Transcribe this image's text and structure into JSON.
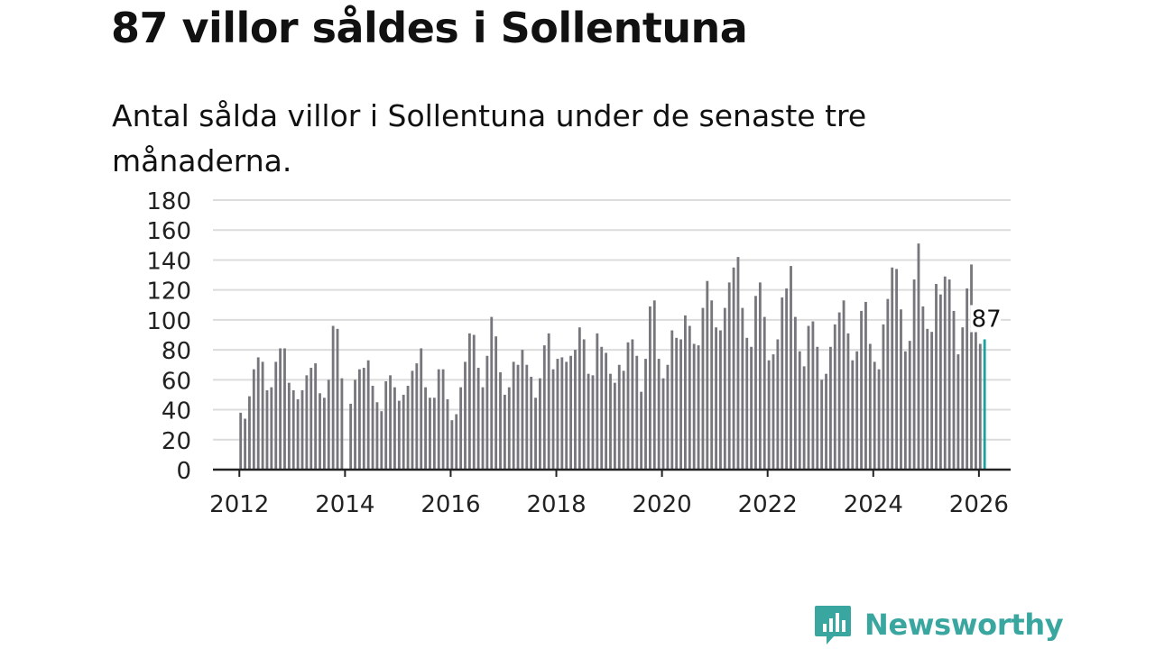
{
  "title": "87 villor såldes i Sollentuna",
  "subtitle": "Antal sålda villor i Sollentuna under de senaste tre månaderna.",
  "brand": {
    "name": "Newsworthy",
    "logo_icon": "bar-chart-speech-bubble-icon",
    "color": "#3aa6a0"
  },
  "chart_data": {
    "type": "bar",
    "title": "Antal sålda villor i Sollentuna under de senaste tre månaderna.",
    "xlabel": "",
    "ylabel": "",
    "ylim": [
      0,
      180
    ],
    "yticks": [
      "0",
      "20",
      "40",
      "60",
      "80",
      "100",
      "120",
      "140",
      "160",
      "180"
    ],
    "xlim": [
      2011.5,
      2026.6
    ],
    "xticks": [
      "2012",
      "2014",
      "2016",
      "2018",
      "2020",
      "2022",
      "2024",
      "2026"
    ],
    "grid": true,
    "bar_color": "#77767c",
    "highlight_color": "#1aa39c",
    "start": {
      "year": 2012,
      "month": 1
    },
    "values": [
      38,
      34,
      49,
      67,
      75,
      72,
      53,
      55,
      72,
      81,
      81,
      58,
      53,
      47,
      53,
      63,
      68,
      71,
      51,
      48,
      60,
      96,
      94,
      61,
      0,
      44,
      60,
      67,
      68,
      73,
      56,
      45,
      39,
      59,
      63,
      55,
      46,
      50,
      56,
      66,
      71,
      81,
      55,
      48,
      48,
      67,
      67,
      47,
      33,
      37,
      55,
      72,
      91,
      90,
      68,
      55,
      76,
      102,
      89,
      65,
      50,
      55,
      72,
      70,
      80,
      70,
      62,
      48,
      61,
      83,
      91,
      67,
      74,
      75,
      72,
      76,
      80,
      95,
      87,
      64,
      63,
      91,
      82,
      78,
      64,
      58,
      70,
      66,
      85,
      87,
      76,
      52,
      74,
      109,
      113,
      74,
      61,
      70,
      93,
      88,
      87,
      103,
      96,
      84,
      83,
      108,
      126,
      113,
      95,
      93,
      108,
      125,
      135,
      142,
      108,
      88,
      82,
      116,
      125,
      102,
      73,
      77,
      87,
      115,
      121,
      136,
      102,
      79,
      69,
      96,
      99,
      82,
      60,
      64,
      82,
      97,
      105,
      113,
      91,
      73,
      79,
      106,
      112,
      84,
      72,
      67,
      97,
      114,
      135,
      134,
      107,
      79,
      86,
      127,
      151,
      109,
      94,
      92,
      124,
      117,
      129,
      127,
      106,
      77,
      95,
      121,
      137,
      95,
      84,
      87
    ],
    "highlight": {
      "label": "87",
      "value": 87
    }
  }
}
